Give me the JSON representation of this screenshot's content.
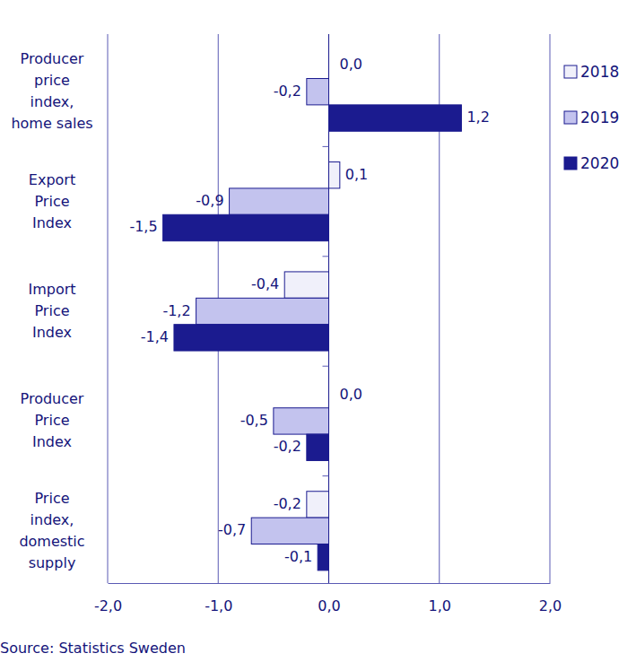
{
  "chart_data": {
    "type": "bar",
    "orientation": "horizontal",
    "categories": [
      "Producer\nprice\nindex,\nhome sales",
      "Export\nPrice\nIndex",
      "Import\nPrice\nIndex",
      "Producer\nPrice\nIndex",
      "Price\nindex,\ndomestic\nsupply"
    ],
    "series": [
      {
        "name": "2018",
        "color": "#f0f0fa",
        "values": [
          0.0,
          0.1,
          -0.4,
          0.0,
          -0.2
        ],
        "value_labels": [
          "0,0",
          "0,1",
          "-0,4",
          "0,0",
          "-0,2"
        ]
      },
      {
        "name": "2019",
        "color": "#c3c3ee",
        "values": [
          -0.2,
          -0.9,
          -1.2,
          -0.5,
          -0.7
        ],
        "value_labels": [
          "-0,2",
          "-0,9",
          "-1,2",
          "-0,5",
          "-0,7"
        ]
      },
      {
        "name": "2020",
        "color": "#1b1b8f",
        "values": [
          1.2,
          -1.5,
          -1.4,
          -0.2,
          -0.1
        ],
        "value_labels": [
          "1,2",
          "-1,5",
          "-1,4",
          "-0,2",
          "-0,1"
        ]
      }
    ],
    "xlim": [
      -2,
      2
    ],
    "xticks": [
      {
        "value": -2,
        "label": "-2,0"
      },
      {
        "value": -1,
        "label": "-1,0"
      },
      {
        "value": 0,
        "label": "0,0"
      },
      {
        "value": 1,
        "label": "1,0"
      },
      {
        "value": 2,
        "label": "2,0"
      }
    ],
    "grid": true,
    "data_labels": true,
    "legend": "top-right",
    "source": "Source: Statistics Sweden"
  }
}
